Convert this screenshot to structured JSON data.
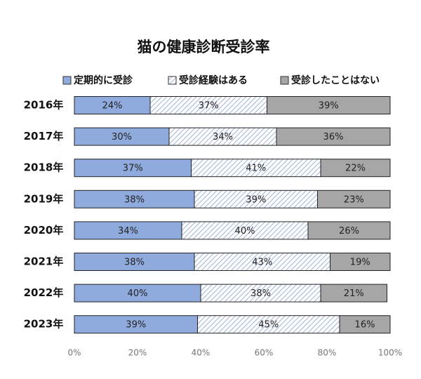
{
  "chart_data": {
    "type": "stacked-bar-horizontal",
    "title": "猫の健康診断受診率",
    "categories": [
      "2016年",
      "2017年",
      "2018年",
      "2019年",
      "2020年",
      "2021年",
      "2022年",
      "2023年"
    ],
    "series": [
      {
        "name": "定期的に受診",
        "color": "#8faadc",
        "values": [
          24,
          30,
          37,
          38,
          34,
          38,
          40,
          39
        ],
        "value_labels": [
          "24%",
          "30%",
          "37%",
          "38%",
          "34%",
          "38%",
          "40%",
          "39%"
        ]
      },
      {
        "name": "受診経験はある",
        "color": "#dae3f3",
        "values": [
          37,
          34,
          41,
          39,
          40,
          43,
          38,
          45
        ],
        "value_labels": [
          "37%",
          "34%",
          "41%",
          "39%",
          "40%",
          "43%",
          "38%",
          "45%"
        ]
      },
      {
        "name": "受診したことはない",
        "color": "#a6a6a6",
        "values": [
          39,
          36,
          22,
          23,
          26,
          19,
          21,
          16
        ],
        "value_labels": [
          "39%",
          "36%",
          "22%",
          "23%",
          "26%",
          "19%",
          "21%",
          "16%"
        ]
      }
    ],
    "xlim": [
      0,
      100
    ],
    "xticks": [
      {
        "value": 0,
        "label": "0%"
      },
      {
        "value": 20,
        "label": "20%"
      },
      {
        "value": 40,
        "label": "40%"
      },
      {
        "value": 60,
        "label": "60%"
      },
      {
        "value": 80,
        "label": "80%"
      },
      {
        "value": 100,
        "label": "100%"
      }
    ],
    "hatched_series": 1
  }
}
